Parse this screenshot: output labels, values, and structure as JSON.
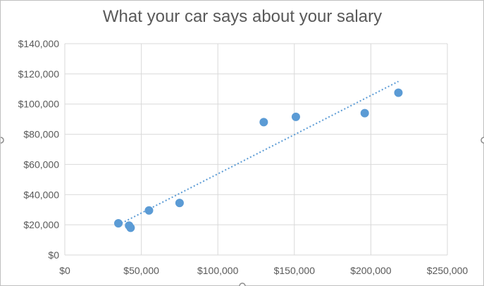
{
  "chart_data": {
    "type": "scatter",
    "title": "What your car says about your salary",
    "xlabel": "",
    "ylabel": "",
    "xlim": [
      0,
      250000
    ],
    "ylim": [
      0,
      140000
    ],
    "x_ticks": [
      0,
      50000,
      100000,
      150000,
      200000,
      250000
    ],
    "x_tick_labels": [
      "$0",
      "$50,000",
      "$100,000",
      "$150,000",
      "$200,000",
      "$250,000"
    ],
    "y_ticks": [
      0,
      20000,
      40000,
      60000,
      80000,
      100000,
      120000,
      140000
    ],
    "y_tick_labels": [
      "$0",
      "$20,000",
      "$40,000",
      "$60,000",
      "$80,000",
      "$100,000",
      "$120,000",
      "$140,000"
    ],
    "grid": true,
    "legend": "none",
    "series": [
      {
        "color": "#5b9bd5",
        "points": [
          {
            "x": 35000,
            "y": 21000
          },
          {
            "x": 42000,
            "y": 19500
          },
          {
            "x": 43000,
            "y": 18000
          },
          {
            "x": 55000,
            "y": 29500
          },
          {
            "x": 75000,
            "y": 34500
          },
          {
            "x": 130000,
            "y": 88000
          },
          {
            "x": 151000,
            "y": 91500
          },
          {
            "x": 196000,
            "y": 94000
          },
          {
            "x": 218000,
            "y": 107500
          }
        ]
      }
    ],
    "trendline": {
      "style": "dotted",
      "color": "#5b9bd5",
      "from": {
        "x": 35000,
        "y": 20000
      },
      "to": {
        "x": 218000,
        "y": 115000
      }
    }
  }
}
